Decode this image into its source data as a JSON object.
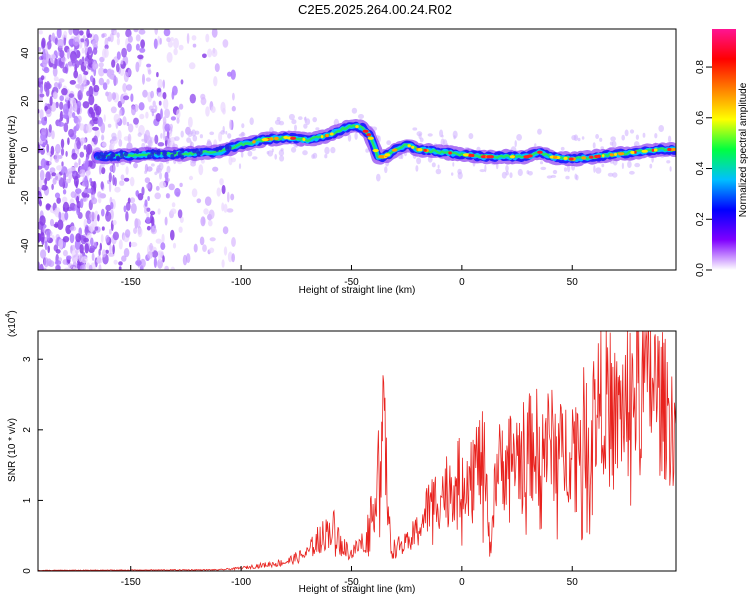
{
  "chart_data": [
    {
      "type": "heatmap",
      "title": "C2E5.2025.264.00.24.R02",
      "xlabel": "Height of straight line (km)",
      "ylabel": "Frequency (Hz)",
      "xlim": [
        -192,
        97
      ],
      "ylim": [
        -50,
        50
      ],
      "xticks": [
        -150,
        -100,
        -50,
        0,
        50
      ],
      "yticks": [
        -40,
        -20,
        0,
        20,
        40
      ],
      "colorbar": {
        "label": "Normalized spectral amplitude",
        "range": [
          0,
          0.95
        ],
        "ticks": [
          0.0,
          0.2,
          0.4,
          0.6,
          0.8
        ],
        "colormap": [
          "#ffffff",
          "#7f00ff",
          "#0000ff",
          "#00c0ff",
          "#00ff40",
          "#ffff00",
          "#ff8000",
          "#ff0000",
          "#ff1493"
        ]
      },
      "ridge": {
        "name": "dominant frequency trace",
        "x": [
          -165,
          -140,
          -130,
          -110,
          -100,
          -90,
          -80,
          -70,
          -60,
          -55,
          -50,
          -45,
          -42,
          -40,
          -38,
          -35,
          -30,
          -25,
          -20,
          -10,
          0,
          10,
          20,
          30,
          35,
          40,
          50,
          60,
          70,
          80,
          90,
          97
        ],
        "y": [
          -3,
          -2,
          -2,
          -1,
          2,
          4,
          5,
          4,
          6,
          8,
          10,
          9,
          6,
          2,
          -3,
          -3,
          0,
          2,
          0,
          -1,
          -2,
          -3,
          -3,
          -3,
          -1,
          -3,
          -4,
          -3,
          -2,
          -1,
          0,
          0
        ]
      }
    },
    {
      "type": "line",
      "xlabel": "Height of straight line (km)",
      "ylabel": "SNR (10 * v/v)",
      "yscale_label": "(x10",
      "yscale_exp": "4",
      "xlim": [
        -192,
        97
      ],
      "ylim": [
        0,
        3.4
      ],
      "xticks": [
        -150,
        -100,
        -50,
        0,
        50
      ],
      "yticks": [
        0,
        1,
        2,
        3
      ],
      "color": "#e8221e",
      "series": [
        {
          "name": "SNR envelope",
          "x": [
            -192,
            -110,
            -100,
            -90,
            -80,
            -70,
            -65,
            -60,
            -57,
            -55,
            -50,
            -45,
            -40,
            -38,
            -36,
            -35,
            -34,
            -33,
            -32,
            -30,
            -25,
            -20,
            -15,
            -10,
            -5,
            0,
            5,
            10,
            13,
            15,
            20,
            25,
            30,
            35,
            40,
            45,
            50,
            55,
            60,
            65,
            70,
            75,
            80,
            85,
            90,
            97
          ],
          "values": [
            0.01,
            0.02,
            0.05,
            0.1,
            0.15,
            0.3,
            0.55,
            0.7,
            0.75,
            0.45,
            0.3,
            0.5,
            1.0,
            2.0,
            2.3,
            2.4,
            1.5,
            0.8,
            0.35,
            0.4,
            0.45,
            0.7,
            1.1,
            1.3,
            1.5,
            1.6,
            1.8,
            1.9,
            0.3,
            1.7,
            1.9,
            2.0,
            2.1,
            2.2,
            2.2,
            2.0,
            2.2,
            2.4,
            2.7,
            3.1,
            2.6,
            3.0,
            3.2,
            3.35,
            2.9,
            2.5
          ]
        }
      ]
    }
  ]
}
